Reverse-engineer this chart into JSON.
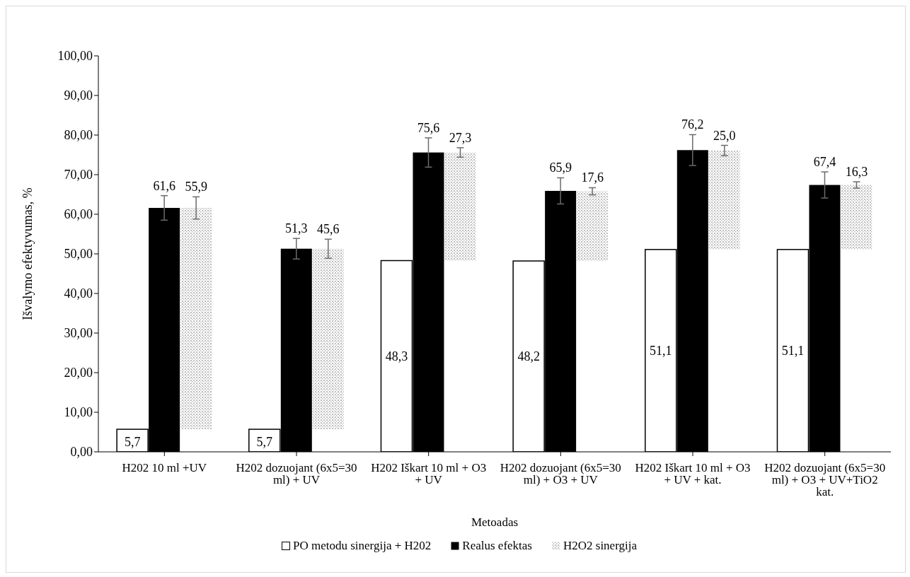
{
  "chart_data": {
    "type": "bar",
    "xlabel": "Metoadas",
    "ylabel": "Išvalymo efektyvumas, %",
    "categories": [
      "H202  10 ml +UV",
      "H202 dozuojant (6x5=30 ml) + UV",
      "H202 Iškart 10 ml + O3  + UV",
      "H202 dozuojant (6x5=30 ml) + O3 + UV",
      "H202 Iškart 10 ml + O3  + UV + kat.",
      "H202 dozuojant (6x5=30 ml) + O3 + UV+TiO2 kat."
    ],
    "series": [
      {
        "name": "PO metodu sinergija + H202",
        "color": "#ffffff",
        "values": [
          5.7,
          5.7,
          48.3,
          48.2,
          51.1,
          51.1
        ],
        "value_labels": [
          "5,7",
          "5,7",
          "48,3",
          "48,2",
          "51,1",
          "51,1"
        ]
      },
      {
        "name": "Realus efektas",
        "color": "#000000",
        "values": [
          61.6,
          51.3,
          75.6,
          65.9,
          76.2,
          67.4
        ],
        "value_labels": [
          "61,6",
          "51,3",
          "75,6",
          "65,9",
          "76,2",
          "67,4"
        ],
        "errors": [
          3.1,
          2.6,
          3.7,
          3.3,
          3.9,
          3.3
        ]
      },
      {
        "name": "H2O2 sinergija",
        "color": "#bfbfbf",
        "values": [
          55.9,
          45.6,
          27.3,
          17.6,
          25.0,
          16.3
        ],
        "base": [
          5.7,
          5.7,
          48.3,
          48.2,
          51.1,
          51.1
        ],
        "value_labels": [
          "55,9",
          "45,6",
          "27,3",
          "17,6",
          "25,0",
          "16,3"
        ],
        "errors": [
          2.8,
          2.4,
          1.2,
          0.9,
          1.3,
          0.8
        ]
      }
    ],
    "ylim": [
      0,
      100
    ],
    "yticks": [
      {
        "value": 0,
        "label": "0,00"
      },
      {
        "value": 10,
        "label": "10,00"
      },
      {
        "value": 20,
        "label": "20,00"
      },
      {
        "value": 30,
        "label": "30,00"
      },
      {
        "value": 40,
        "label": "40,00"
      },
      {
        "value": 50,
        "label": "50,00"
      },
      {
        "value": 60,
        "label": "60,00"
      },
      {
        "value": 70,
        "label": "70,00"
      },
      {
        "value": 80,
        "label": "80,00"
      },
      {
        "value": 90,
        "label": "90,00"
      },
      {
        "value": 100,
        "label": "100,00"
      }
    ],
    "legend": "bottom"
  }
}
